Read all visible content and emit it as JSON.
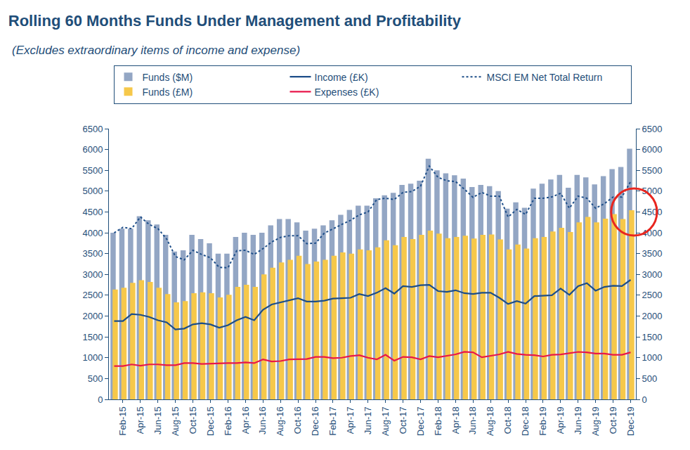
{
  "chart_data": {
    "type": "bar",
    "title": "Rolling 60 Months Funds Under Management and Profitability",
    "subtitle": "(Excludes extraordinary items of income and expense)",
    "categories": [
      null,
      "Feb-15",
      null,
      "Apr-15",
      null,
      "Jun-15",
      null,
      "Aug-15",
      null,
      "Oct-15",
      null,
      "Dec-15",
      null,
      "Feb-16",
      null,
      "Apr-16",
      null,
      "Jun-16",
      null,
      "Aug-16",
      null,
      "Oct-16",
      null,
      "Dec-16",
      null,
      "Feb-17",
      null,
      "Apr-17",
      null,
      "Jun-17",
      null,
      "Aug-17",
      null,
      "Oct-17",
      null,
      "Dec-17",
      null,
      "Feb-18",
      null,
      "Apr-18",
      null,
      "Jun-18",
      null,
      "Aug-18",
      null,
      "Oct-18",
      null,
      "Dec-18",
      null,
      "Feb-19",
      null,
      "Apr-19",
      null,
      "Jun-19",
      null,
      "Aug-19",
      null,
      "Oct-19",
      null,
      "Dec-19"
    ],
    "series": [
      {
        "name": "Funds ($M)",
        "type": "bar",
        "color": "#93a6c4",
        "values": [
          4000,
          4100,
          4100,
          4400,
          4300,
          4200,
          3950,
          3550,
          3580,
          3950,
          3850,
          3750,
          3500,
          3500,
          3900,
          4000,
          3950,
          4000,
          4180,
          4330,
          4330,
          4250,
          4050,
          4100,
          4180,
          4300,
          4430,
          4550,
          4650,
          4650,
          4830,
          4900,
          4960,
          5150,
          5180,
          5250,
          5780,
          5500,
          5430,
          5380,
          5300,
          5100,
          5150,
          5120,
          5000,
          4580,
          4730,
          4600,
          5060,
          5180,
          5280,
          5390,
          5080,
          5390,
          5330,
          5160,
          5360,
          5530,
          5580,
          6020
        ]
      },
      {
        "name": "Income (£K)",
        "type": "line",
        "color": "#1d4e89",
        "line_style": "solid",
        "values": [
          1880,
          1880,
          2050,
          2030,
          1980,
          1900,
          1850,
          1680,
          1700,
          1800,
          1830,
          1800,
          1720,
          1780,
          1900,
          1980,
          1900,
          2150,
          2280,
          2330,
          2390,
          2430,
          2350,
          2350,
          2370,
          2420,
          2430,
          2440,
          2530,
          2480,
          2560,
          2670,
          2540,
          2720,
          2700,
          2740,
          2750,
          2600,
          2580,
          2620,
          2550,
          2530,
          2560,
          2560,
          2440,
          2290,
          2360,
          2300,
          2480,
          2490,
          2500,
          2660,
          2510,
          2720,
          2790,
          2610,
          2700,
          2730,
          2720,
          2870
        ]
      },
      {
        "name": "MSCI EM Net Total Return",
        "type": "line",
        "color": "#1d4e89",
        "line_style": "dot",
        "axis": "y2",
        "values": [
          4000,
          4130,
          4100,
          4380,
          4200,
          4100,
          3850,
          3430,
          3350,
          3580,
          3480,
          3400,
          3170,
          3160,
          3570,
          3580,
          3480,
          3620,
          3780,
          3890,
          3930,
          3930,
          3740,
          3750,
          3990,
          4100,
          4200,
          4300,
          4430,
          4500,
          4800,
          4830,
          4800,
          4970,
          4990,
          5120,
          5600,
          5330,
          5250,
          5230,
          5050,
          4850,
          4970,
          4880,
          4880,
          4380,
          4560,
          4440,
          4830,
          4830,
          4860,
          4950,
          4590,
          4880,
          4830,
          4590,
          4700,
          4860,
          4860,
          5230
        ]
      },
      {
        "name": "Funds (£M)",
        "type": "bar",
        "color": "#f6c84a",
        "values": [
          2640,
          2680,
          2800,
          2860,
          2820,
          2680,
          2530,
          2330,
          2360,
          2550,
          2570,
          2550,
          2450,
          2510,
          2700,
          2750,
          2700,
          3000,
          3160,
          3290,
          3350,
          3450,
          3250,
          3310,
          3350,
          3450,
          3530,
          3500,
          3600,
          3580,
          3650,
          3820,
          3700,
          3900,
          3850,
          3950,
          4050,
          3980,
          3870,
          3900,
          3930,
          3860,
          3950,
          3960,
          3840,
          3600,
          3720,
          3620,
          3870,
          3900,
          4030,
          4120,
          4020,
          4250,
          4380,
          4250,
          4340,
          4450,
          4330,
          4540
        ]
      },
      {
        "name": "Expenses (£K)",
        "type": "line",
        "color": "#e8174a",
        "line_style": "solid",
        "values": [
          800,
          800,
          840,
          810,
          840,
          840,
          820,
          820,
          870,
          870,
          850,
          860,
          870,
          870,
          870,
          890,
          870,
          960,
          910,
          920,
          960,
          960,
          970,
          1020,
          1020,
          990,
          1000,
          1040,
          1060,
          1000,
          960,
          1070,
          930,
          1020,
          1010,
          960,
          1040,
          1010,
          1040,
          1080,
          1140,
          1130,
          1010,
          1050,
          1080,
          1140,
          1090,
          1070,
          1060,
          1030,
          1070,
          1080,
          1110,
          1140,
          1130,
          1100,
          1100,
          1070,
          1070,
          1130
        ]
      }
    ],
    "ylim": [
      0,
      6500
    ],
    "yticks": [
      0,
      500,
      1000,
      1500,
      2000,
      2500,
      3000,
      3500,
      4000,
      4500,
      5000,
      5500,
      6000,
      6500
    ],
    "y2lim": [
      0,
      6500
    ],
    "y2ticks": [
      0,
      500,
      1000,
      1500,
      2000,
      2500,
      3000,
      3500,
      4000,
      4500,
      5000,
      5500,
      6000,
      6500
    ],
    "grid": false,
    "legend": "top"
  }
}
